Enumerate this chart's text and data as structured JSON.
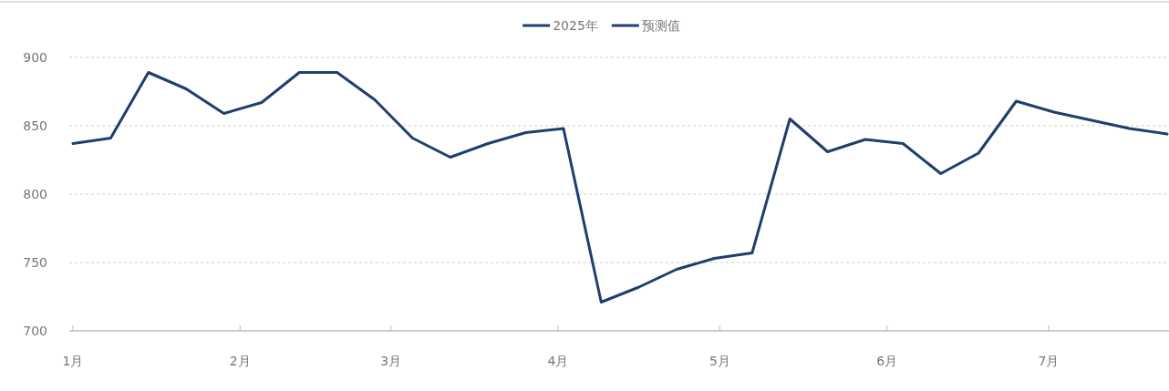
{
  "chart_data": {
    "type": "line",
    "x": [
      "2025-01-01",
      "2025-01-08",
      "2025-01-15",
      "2025-01-22",
      "2025-01-29",
      "2025-02-05",
      "2025-02-12",
      "2025-02-19",
      "2025-02-26",
      "2025-03-05",
      "2025-03-12",
      "2025-03-19",
      "2025-03-26",
      "2025-04-02",
      "2025-04-09",
      "2025-04-16",
      "2025-04-23",
      "2025-04-30",
      "2025-05-07",
      "2025-05-14",
      "2025-05-21",
      "2025-05-28",
      "2025-06-04",
      "2025-06-11",
      "2025-06-18",
      "2025-06-25",
      "2025-07-02",
      "2025-07-09",
      "2025-07-16",
      "2025-07-23"
    ],
    "series": [
      {
        "name": "2025年",
        "color": "#1e3f6d",
        "values": [
          837,
          841,
          889,
          877,
          859,
          867,
          889,
          889,
          869,
          841,
          827,
          837,
          845,
          848,
          721,
          732,
          745,
          753,
          757,
          855,
          831,
          840,
          837,
          815,
          830,
          868,
          860,
          854,
          848,
          844
        ]
      },
      {
        "name": "预测值",
        "color": "#1e3f6d",
        "values": [
          null,
          null,
          null,
          null,
          null,
          null,
          null,
          null,
          null,
          null,
          null,
          null,
          null,
          null,
          null,
          null,
          null,
          null,
          null,
          null,
          null,
          null,
          null,
          null,
          null,
          null,
          null,
          null,
          null,
          null
        ]
      }
    ],
    "xlim": [
      "2025-01-01",
      "2025-07-23"
    ],
    "xticks": [
      {
        "value": "2025-01-01",
        "label": "1月"
      },
      {
        "value": "2025-02-01",
        "label": "2月"
      },
      {
        "value": "2025-03-01",
        "label": "3月"
      },
      {
        "value": "2025-04-01",
        "label": "4月"
      },
      {
        "value": "2025-05-01",
        "label": "5月"
      },
      {
        "value": "2025-06-01",
        "label": "6月"
      },
      {
        "value": "2025-07-01",
        "label": "7月"
      }
    ],
    "ylim": [
      700,
      900
    ],
    "yticks": [
      700,
      750,
      800,
      850,
      900
    ],
    "grid": "y",
    "legend": "top",
    "marker": "none",
    "line_style": "solid"
  }
}
